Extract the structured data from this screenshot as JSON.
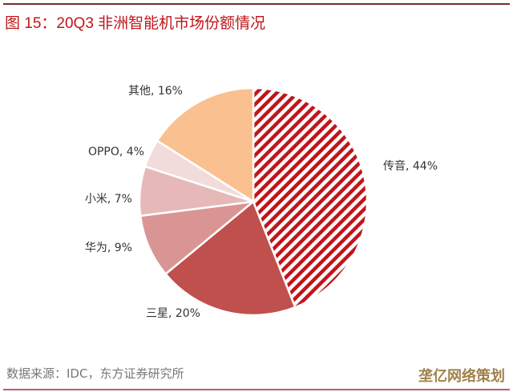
{
  "title": "图 15：20Q3 非洲智能机市场份额情况",
  "source": "数据来源：IDC，东方证券研究所",
  "watermark": "垄亿网络策划",
  "chart_data": {
    "type": "pie",
    "title": "20Q3 非洲智能机市场份额情况",
    "start": "top-clockwise",
    "categories": [
      "传音",
      "三星",
      "华为",
      "小米",
      "OPPO",
      "其他"
    ],
    "values": [
      44,
      20,
      9,
      7,
      4,
      16
    ],
    "labels": [
      "传音, 44%",
      "三星, 20%",
      "华为, 9%",
      "小米, 7%",
      "OPPO, 4%",
      "其他, 16%"
    ],
    "colors": [
      "#c0151b",
      "#c0504d",
      "#d99594",
      "#e6b9b8",
      "#f2dcdb",
      "#fac090"
    ],
    "hatched": [
      true,
      false,
      false,
      false,
      false,
      false
    ]
  }
}
